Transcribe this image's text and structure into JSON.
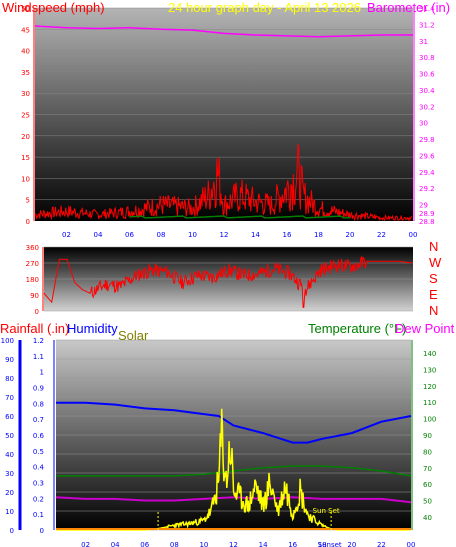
{
  "header": {
    "windspeed_label": "Windspeed (mph)",
    "title": "24 hour graph day - April 13 2026",
    "barometer_label": "Barometer (in)",
    "rainfall_label": "Rainfall (.in)",
    "humidity_label": "Humidity",
    "solar_label": "Solar",
    "temperature_label": "Temperature (°F)",
    "dewpoint_label": "Dew Point ("
  },
  "colors": {
    "wind": "#ff0000",
    "barometer": "#ff00ff",
    "humidity": "#0000ff",
    "solar": "#ffff00",
    "temperature": "#008000",
    "dewpoint": "#cc00cc",
    "rain": "#ff0000",
    "axis_blue": "#0000ff",
    "axis_green": "#008000",
    "axis_red": "#ff0000",
    "axis_magenta": "#ff00ff",
    "axis_olive": "#808000"
  },
  "chart_data": [
    {
      "type": "line",
      "name": "wind-barometer-panel",
      "x_ticks": [
        "02",
        "04",
        "06",
        "08",
        "10",
        "12",
        "14",
        "16",
        "18",
        "20",
        "22",
        "00"
      ],
      "y_left": {
        "label": "Windspeed (mph)",
        "ticks": [
          0,
          5,
          10,
          15,
          20,
          25,
          30,
          35,
          40,
          45,
          50
        ],
        "range": [
          0,
          50
        ]
      },
      "y_right": {
        "label": "Barometer (in)",
        "ticks": [
          28.8,
          28.9,
          29,
          29.2,
          29.4,
          29.6,
          29.8,
          30,
          30.2,
          30.4,
          30.6,
          30.8,
          31,
          31.2,
          31.4
        ],
        "range": [
          28.8,
          31.4
        ]
      },
      "series": [
        {
          "name": "Windspeed",
          "axis": "left",
          "x": [
            0,
            2,
            4,
            6,
            8,
            10,
            11,
            11.6,
            12,
            13,
            14,
            15,
            16,
            16.8,
            17,
            18,
            20,
            22,
            24
          ],
          "y": [
            2,
            3,
            2,
            3,
            5,
            4,
            8,
            15,
            5,
            8,
            6,
            5,
            10,
            15,
            8,
            4,
            2,
            1,
            1
          ]
        },
        {
          "name": "Barometer",
          "axis": "right",
          "x": [
            0,
            2,
            4,
            6,
            8,
            10,
            12,
            14,
            16,
            18,
            20,
            22,
            24
          ],
          "y": [
            31.18,
            31.16,
            31.15,
            31.16,
            31.14,
            31.13,
            31.09,
            31.07,
            31.06,
            31.05,
            31.06,
            31.07,
            31.07
          ]
        }
      ]
    },
    {
      "type": "line",
      "name": "wind-direction-panel",
      "y_left": {
        "ticks": [
          0,
          90,
          180,
          270,
          360
        ],
        "range": [
          0,
          360
        ]
      },
      "compass": [
        "N",
        "W",
        "S",
        "E",
        "N"
      ],
      "series": [
        {
          "name": "Wind direction",
          "x": [
            0,
            0.5,
            1,
            1.5,
            2,
            2.5,
            3,
            4,
            5,
            6,
            7,
            8,
            9,
            10,
            11,
            12,
            13,
            14,
            15,
            16,
            17,
            18,
            19,
            20,
            21,
            22,
            23,
            24
          ],
          "y": [
            100,
            50,
            290,
            290,
            160,
            120,
            100,
            150,
            140,
            200,
            230,
            220,
            160,
            200,
            190,
            230,
            200,
            210,
            240,
            210,
            120,
            230,
            260,
            250,
            280,
            280,
            280,
            270
          ]
        }
      ]
    },
    {
      "type": "line",
      "name": "rain-humidity-solar-temperature-panel",
      "x_ticks": [
        "02",
        "04",
        "06",
        "08",
        "10",
        "12",
        "14",
        "16",
        "18",
        "20",
        "22",
        "00"
      ],
      "y_rain": {
        "label": "Rainfall (.in)",
        "ticks": [
          0,
          10,
          20,
          30,
          40,
          50,
          60,
          70,
          80,
          90,
          100
        ],
        "range": [
          0,
          100
        ]
      },
      "y_humidity": {
        "label": "Humidity",
        "ticks": [
          0,
          0.1,
          0.2,
          0.3,
          0.4,
          0.5,
          0.6,
          0.7,
          0.8,
          0.9,
          1,
          1.1,
          1.2
        ],
        "range": [
          0,
          1.2
        ]
      },
      "y_right": {
        "label": "Temperature (°F)",
        "ticks": [
          40,
          50,
          60,
          70,
          80,
          90,
          100,
          110,
          120,
          130,
          140
        ],
        "range": [
          32,
          148
        ]
      },
      "annotations": [
        "Sun Set",
        "Sunset"
      ],
      "series": [
        {
          "name": "Humidity",
          "axis": "rain",
          "x": [
            0,
            2,
            4,
            6,
            8,
            10,
            11,
            12,
            14,
            16,
            17,
            18,
            20,
            22,
            24
          ],
          "y": [
            67,
            67,
            66,
            64,
            63,
            61,
            60,
            55,
            51,
            46,
            46,
            48,
            51,
            57,
            60
          ]
        },
        {
          "name": "Temperature",
          "axis": "right",
          "x": [
            0,
            2,
            4,
            6,
            8,
            10,
            12,
            14,
            16,
            18,
            20,
            22,
            24
          ],
          "y": [
            65,
            65,
            65,
            65,
            65,
            66,
            68,
            70,
            71,
            71,
            70,
            68,
            65
          ]
        },
        {
          "name": "Dew Point",
          "axis": "right",
          "x": [
            0,
            2,
            4,
            6,
            8,
            10,
            12,
            14,
            16,
            18,
            20,
            22,
            24
          ],
          "y": [
            52,
            51,
            51,
            50,
            50,
            51,
            52,
            51,
            52,
            51,
            51,
            51,
            49
          ]
        },
        {
          "name": "Solar",
          "axis": "humidity",
          "x": [
            0,
            6,
            7,
            8,
            9,
            10,
            10.5,
            11,
            11.2,
            11.5,
            11.8,
            12,
            12.5,
            13,
            13.5,
            14,
            14.5,
            15,
            15.5,
            16,
            16.5,
            17,
            17.5,
            18,
            18.5,
            19,
            24
          ],
          "y": [
            0,
            0,
            0.01,
            0.03,
            0.04,
            0.06,
            0.12,
            0.3,
            0.6,
            0.3,
            0.55,
            0.25,
            0.2,
            0.15,
            0.28,
            0.15,
            0.3,
            0.12,
            0.28,
            0.1,
            0.25,
            0.1,
            0.06,
            0.03,
            0.01,
            0,
            0
          ]
        },
        {
          "name": "Rainfall",
          "axis": "rain",
          "x": [
            0,
            24
          ],
          "y": [
            0,
            0
          ]
        }
      ]
    }
  ]
}
